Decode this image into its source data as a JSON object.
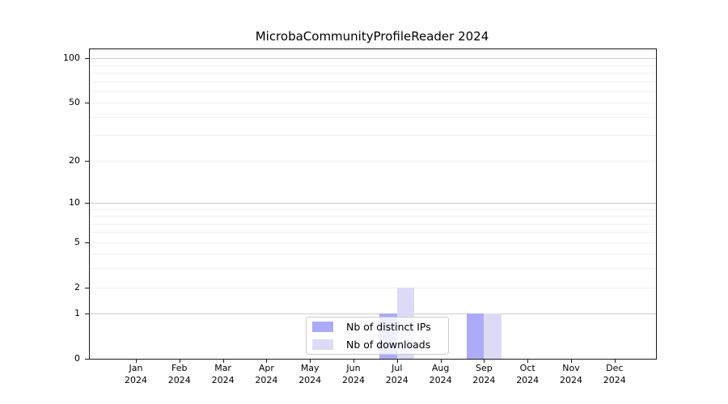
{
  "figure": {
    "title": "MicrobaCommunityProfileReader 2024"
  },
  "chart_data": {
    "type": "bar",
    "title": "MicrobaCommunityProfileReader 2024",
    "categories": [
      "Jan 2024",
      "Feb 2024",
      "Mar 2024",
      "Apr 2024",
      "May 2024",
      "Jun 2024",
      "Jul 2024",
      "Aug 2024",
      "Sep 2024",
      "Oct 2024",
      "Nov 2024",
      "Dec 2024"
    ],
    "series": [
      {
        "name": "Nb of distinct IPs",
        "color": "#ababf7",
        "values": [
          0,
          0,
          0,
          0,
          0,
          0,
          1,
          0,
          1,
          0,
          0,
          0
        ]
      },
      {
        "name": "Nb of downloads",
        "color": "#dbdbf8",
        "values": [
          0,
          0,
          0,
          0,
          0,
          0,
          2,
          0,
          1,
          0,
          0,
          0
        ]
      }
    ],
    "xlabel": "",
    "ylabel": "",
    "yaxis": {
      "scale": "symlog",
      "labeled_ticks": [
        0,
        1,
        2,
        5,
        10,
        20,
        50,
        100
      ],
      "major_gridlines": [
        1,
        10,
        100
      ],
      "minor_gridlines": [
        2,
        3,
        4,
        5,
        6,
        7,
        8,
        9,
        20,
        30,
        40,
        50,
        60,
        70,
        80,
        90
      ],
      "range": [
        0,
        115
      ]
    },
    "grid": true,
    "legend": {
      "position": "lower center",
      "entries": [
        "Nb of distinct IPs",
        "Nb of downloads"
      ]
    }
  },
  "colors": {
    "background": "#ffffff",
    "spine": "#1a1a1a",
    "major_grid": "#cdcdcd",
    "minor_grid": "#f0f0f0",
    "bar_distinct_ips": "#ababf7",
    "bar_downloads": "#dbdbf8",
    "legend_border": "#cccccc",
    "text": "#000000"
  }
}
